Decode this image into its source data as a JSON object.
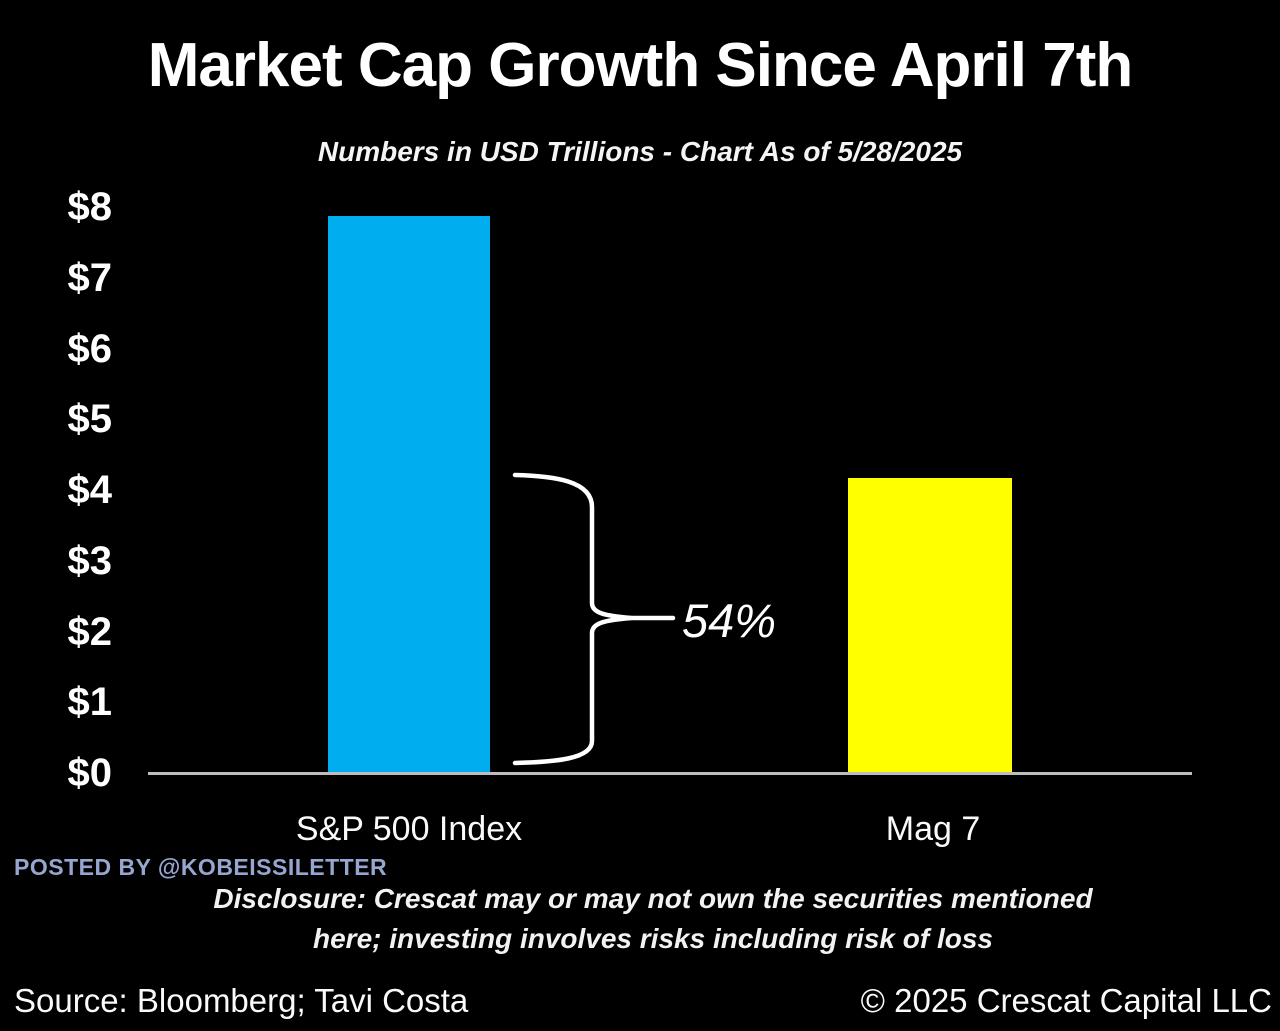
{
  "header": {
    "title": "Market Cap Growth Since April 7th",
    "subtitle": "Numbers in USD Trillions  - Chart As of 5/28/2025"
  },
  "chart_data": {
    "type": "bar",
    "title": "Market Cap Growth Since April 7th",
    "subtitle": "Numbers in USD Trillions - Chart As of 5/28/2025",
    "units": "USD Trillions",
    "categories": [
      "S&P 500 Index",
      "Mag 7"
    ],
    "values": [
      7.9,
      4.2
    ],
    "bar_colors": [
      "#00AEEF",
      "#FFFF00"
    ],
    "ylim": [
      0,
      8
    ],
    "yticks": [
      {
        "value": 8,
        "label": "$8"
      },
      {
        "value": 7,
        "label": "$7"
      },
      {
        "value": 6,
        "label": "$6"
      },
      {
        "value": 5,
        "label": "$5"
      },
      {
        "value": 4,
        "label": "$4"
      },
      {
        "value": 3,
        "label": "$3"
      },
      {
        "value": 2,
        "label": "$2"
      },
      {
        "value": 1,
        "label": "$1"
      },
      {
        "value": 0,
        "label": "$0"
      }
    ],
    "grid": false,
    "legend": "none",
    "background": "#000000",
    "annotation": {
      "label": "54%",
      "meaning": "Mag 7 growth ($4.2T) as share of S&P 500 Index growth ($7.9T)"
    }
  },
  "footer": {
    "posted_by": "POSTED BY @KOBEISSILETTER",
    "disclosure_line1": "Disclosure: Crescat may or may not own the securities mentioned",
    "disclosure_line2": "here; investing involves risks including risk of loss",
    "source": "Source: Bloomberg; Tavi Costa",
    "copyright": "© 2025 Crescat Capital LLC"
  },
  "colors": {
    "background": "#000000",
    "text": "#FFFFFF",
    "axis_line": "#BDBDBD",
    "posted_by": "#97A6D0",
    "sp500_bar": "#00AEEF",
    "mag7_bar": "#FFFF00"
  }
}
